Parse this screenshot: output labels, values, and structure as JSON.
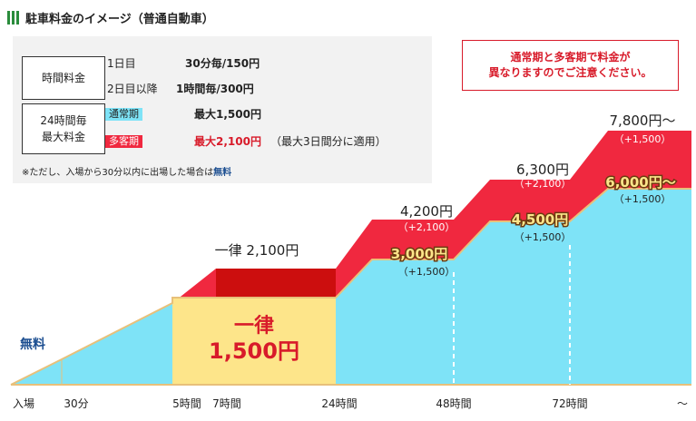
{
  "header": {
    "title": "駐車料金のイメージ（普通自動車）"
  },
  "rate_table": {
    "hourly_label": "時間料金",
    "day1_label": "1日目",
    "day1_value": "30分毎/150円",
    "day2_label": "2日目以降",
    "day2_value": "1時間毎/300円",
    "max_label_1": "24時間毎",
    "max_label_2": "最大料金",
    "normal_tag": "通常期",
    "normal_value": "最大1,500円",
    "busy_tag": "多客期",
    "busy_value": "最大2,100円",
    "busy_note": "（最大3日間分に適用）",
    "footnote_prefix": "※ただし、入場から30分以内に出場した場合は",
    "footnote_free": "無料"
  },
  "alert": {
    "line1": "通常期と多客期で料金が",
    "line2": "異なりますのでご注意ください。"
  },
  "chart_data": {
    "type": "area",
    "x_categories": [
      "入場",
      "30分",
      "5時間",
      "7時間",
      "24時間",
      "48時間",
      "72時間",
      "～"
    ],
    "series": [
      {
        "name": "通常期",
        "color": "#7ee3f7"
      },
      {
        "name": "多客期",
        "color": "#f0283f"
      }
    ],
    "annotations": {
      "free": "無料",
      "flat_normal_1": "一律",
      "flat_normal_2": "1,500円",
      "flat_busy": "一律 2,100円",
      "busy_48": "4,200円",
      "busy_48_add": "（+2,100）",
      "normal_48": "3,000円",
      "normal_48_add": "（+1,500）",
      "busy_72": "6,300円",
      "busy_72_add": "（+2,100）",
      "normal_72": "4,500円",
      "normal_72_add": "（+1,500）",
      "busy_max": "7,800円～",
      "busy_max_add": "（+1,500）",
      "normal_max": "6,000円～",
      "normal_max_add": "（+1,500）"
    },
    "colors": {
      "normal": "#7ee3f7",
      "busy": "#f0283f",
      "busy_flat": "#cc0e0e",
      "flat_normal": "#fde58a",
      "outline": "#e8c07a"
    }
  }
}
